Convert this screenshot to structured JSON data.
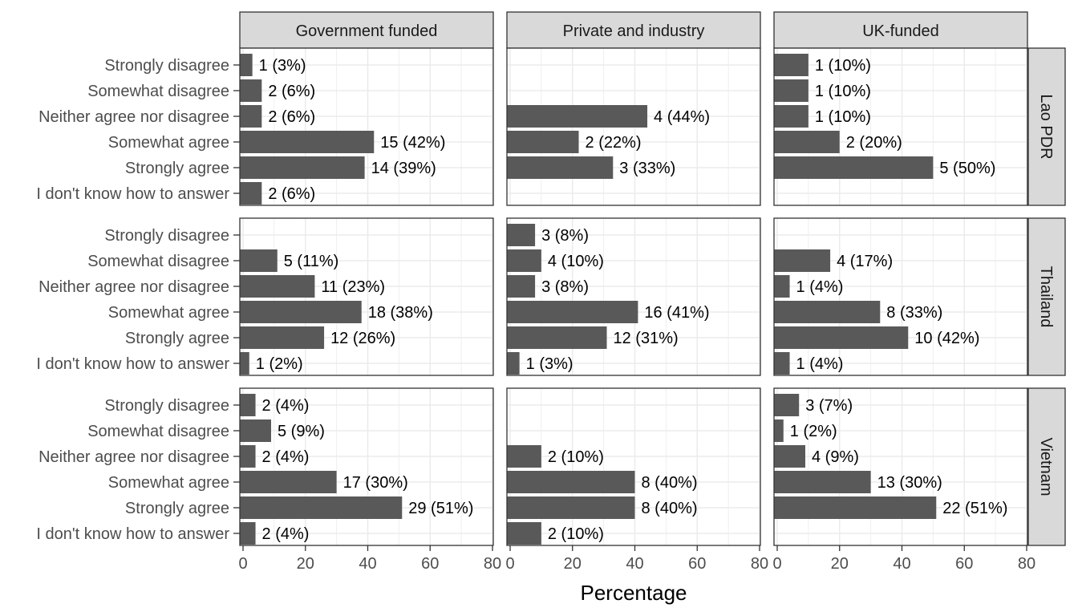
{
  "chart_data": {
    "type": "bar",
    "orientation": "horizontal",
    "xlabel": "Percentage",
    "xlim": [
      0,
      80
    ],
    "xticks": [
      "0",
      "20",
      "40",
      "60",
      "80"
    ],
    "grid": true,
    "bar_color": "#595959",
    "panel_border_color": "#333333",
    "strip_fill": "#d9d9d9",
    "grid_color": "#ebebeb",
    "categories": [
      "Strongly disagree",
      "Somewhat disagree",
      "Neither agree nor disagree",
      "Somewhat agree",
      "Strongly agree",
      "I don't know how to answer"
    ],
    "columns": [
      "Government funded",
      "Private and industry",
      "UK-funded"
    ],
    "rows": [
      "Lao PDR",
      "Thailand",
      "Vietnam"
    ],
    "panels": [
      {
        "row": "Lao PDR",
        "column": "Government funded",
        "values": [
          3,
          6,
          6,
          42,
          39,
          6
        ],
        "labels": [
          "1 (3%)",
          "2 (6%)",
          "2 (6%)",
          "15 (42%)",
          "14 (39%)",
          "2 (6%)"
        ]
      },
      {
        "row": "Lao PDR",
        "column": "Private and industry",
        "values": [
          null,
          null,
          44,
          22,
          33,
          null
        ],
        "labels": [
          "",
          "",
          "4 (44%)",
          "2 (22%)",
          "3 (33%)",
          ""
        ]
      },
      {
        "row": "Lao PDR",
        "column": "UK-funded",
        "values": [
          10,
          10,
          10,
          20,
          50,
          null
        ],
        "labels": [
          "1 (10%)",
          "1 (10%)",
          "1 (10%)",
          "2 (20%)",
          "5 (50%)",
          ""
        ]
      },
      {
        "row": "Thailand",
        "column": "Government funded",
        "values": [
          null,
          11,
          23,
          38,
          26,
          2
        ],
        "labels": [
          "",
          "5 (11%)",
          "11 (23%)",
          "18 (38%)",
          "12 (26%)",
          "1 (2%)"
        ]
      },
      {
        "row": "Thailand",
        "column": "Private and industry",
        "values": [
          8,
          10,
          8,
          41,
          31,
          3
        ],
        "labels": [
          "3 (8%)",
          "4 (10%)",
          "3 (8%)",
          "16 (41%)",
          "12 (31%)",
          "1 (3%)"
        ]
      },
      {
        "row": "Thailand",
        "column": "UK-funded",
        "values": [
          null,
          17,
          4,
          33,
          42,
          4
        ],
        "labels": [
          "",
          "4 (17%)",
          "1 (4%)",
          "8 (33%)",
          "10 (42%)",
          "1 (4%)"
        ]
      },
      {
        "row": "Vietnam",
        "column": "Government funded",
        "values": [
          4,
          9,
          4,
          30,
          51,
          4
        ],
        "labels": [
          "2 (4%)",
          "5 (9%)",
          "2 (4%)",
          "17 (30%)",
          "29 (51%)",
          "2 (4%)"
        ]
      },
      {
        "row": "Vietnam",
        "column": "Private and industry",
        "values": [
          null,
          null,
          10,
          40,
          40,
          10
        ],
        "labels": [
          "",
          "",
          "2 (10%)",
          "8 (40%)",
          "8 (40%)",
          "2 (10%)"
        ]
      },
      {
        "row": "Vietnam",
        "column": "UK-funded",
        "values": [
          7,
          2,
          9,
          30,
          51,
          null
        ],
        "labels": [
          "3 (7%)",
          "1 (2%)",
          "4 (9%)",
          "13 (30%)",
          "22 (51%)",
          ""
        ]
      }
    ]
  }
}
